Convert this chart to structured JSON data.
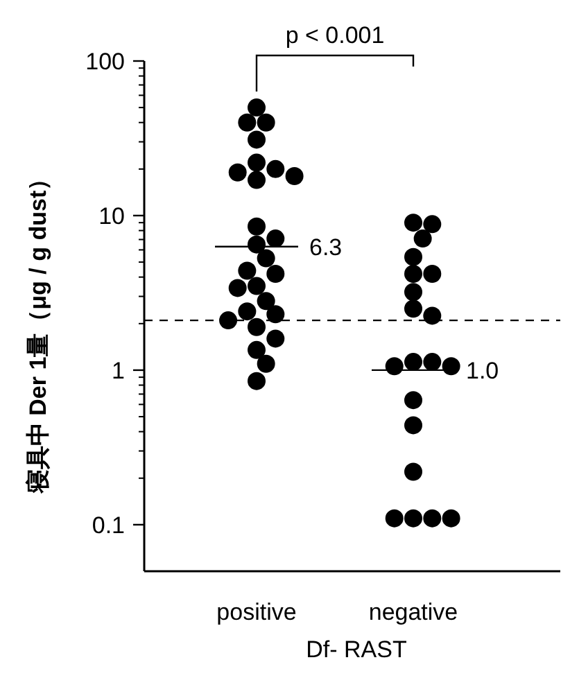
{
  "chart_data": {
    "type": "scatter",
    "categories": [
      "positive",
      "negative"
    ],
    "xlabel": "Df- RAST",
    "ylabel": "寝具中 Der 1量（μg / g dust）",
    "log": "y",
    "ylim": [
      0.05,
      100
    ],
    "yticks": [
      0.1,
      1,
      10,
      100
    ],
    "grid": false,
    "marker": "circle",
    "series": [
      {
        "color": "#000000",
        "x": [
          "positive",
          "positive",
          "positive",
          "positive",
          "positive",
          "positive",
          "positive",
          "positive",
          "positive",
          "positive",
          "positive",
          "positive",
          "positive",
          "positive",
          "positive",
          "positive",
          "positive",
          "positive",
          "positive",
          "positive",
          "positive",
          "positive",
          "positive",
          "positive",
          "positive",
          "positive"
        ],
        "values": [
          50,
          40,
          40,
          31,
          22,
          20,
          19,
          18,
          17,
          8.5,
          7.1,
          6.5,
          5.3,
          4.4,
          4.2,
          3.5,
          3.4,
          2.8,
          2.4,
          2.3,
          2.1,
          1.9,
          1.6,
          1.35,
          1.1,
          0.85
        ]
      },
      {
        "color": "#000000",
        "x": [
          "negative",
          "negative",
          "negative",
          "negative",
          "negative",
          "negative",
          "negative",
          "negative",
          "negative",
          "negative",
          "negative",
          "negative",
          "negative",
          "negative",
          "negative",
          "negative",
          "negative",
          "negative",
          "negative",
          "negative"
        ],
        "values": [
          9.0,
          8.8,
          7.1,
          5.4,
          4.2,
          4.2,
          3.2,
          2.5,
          2.25,
          1.13,
          1.13,
          1.06,
          1.06,
          0.64,
          0.44,
          0.22,
          0.11,
          0.11,
          0.11,
          0.11
        ]
      }
    ],
    "ref_lines": [
      {
        "axis": "y",
        "value": 2.1,
        "line_style": "dashed",
        "color": "#000000"
      }
    ],
    "annotations": [
      {
        "text": "6.3",
        "x": "positive",
        "y": 6.3
      },
      {
        "text": "1.0",
        "x": "negative",
        "y": 1.0
      },
      "p < 0.001"
    ]
  }
}
